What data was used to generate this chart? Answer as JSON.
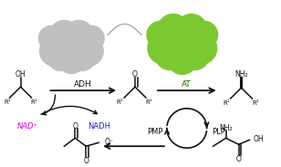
{
  "fig_width": 3.08,
  "fig_height": 1.83,
  "dpi": 100,
  "bg_color": "#ffffff",
  "gray_blob_color": "#c0c0c0",
  "green_blob_color": "#7cc832",
  "adh_label": "ADH",
  "at_label": "AT",
  "nad_plus_label": "NAD⁺",
  "nadh_label": "NADH",
  "pmp_label": "PMP",
  "plp_label": "PLP",
  "nad_color": "#dd00dd",
  "nadh_color": "#2222cc",
  "at_label_color": "#226600",
  "arrow_color": "#111111",
  "line_color": "#111111"
}
